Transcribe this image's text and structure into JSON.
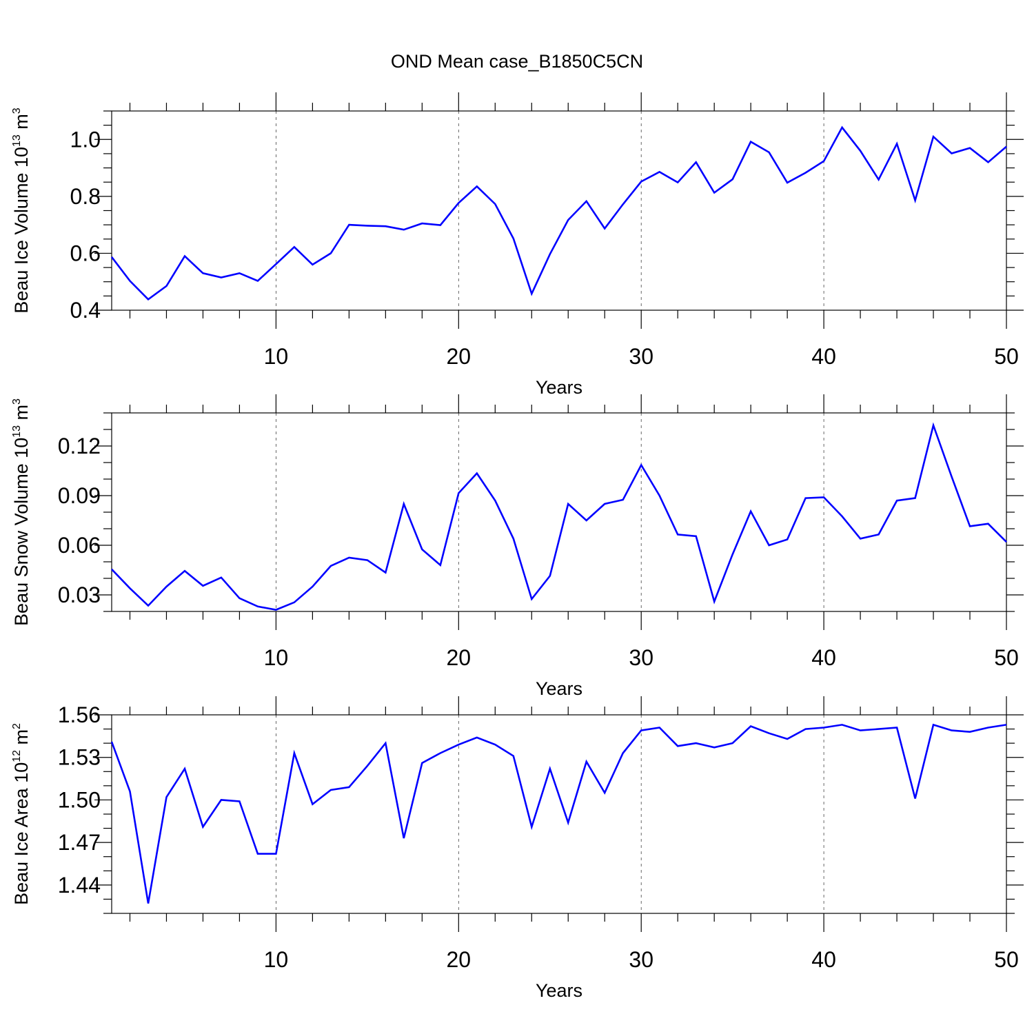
{
  "title": "OND Mean case_B1850C5CN",
  "colors": {
    "series": "#0000ff",
    "axes": "#000000",
    "background": "#ffffff"
  },
  "chart_data": [
    {
      "type": "line",
      "id": "ice-volume",
      "xlabel": "Years",
      "ylabel": {
        "main": "Beau Ice Volume 10",
        "exp": "13",
        "unit": " m",
        "unit_exp": "3"
      },
      "xlim": [
        1,
        50
      ],
      "ylim": [
        0.4,
        1.1
      ],
      "xticks": [
        10,
        20,
        30,
        40,
        50
      ],
      "xtick_labels": [
        "10",
        "20",
        "30",
        "40",
        "50"
      ],
      "yticks": [
        0.4,
        0.6,
        0.8,
        1.0
      ],
      "ytick_labels": [
        "0.4",
        "0.6",
        "0.8",
        "1.0"
      ],
      "y_minor_step": 0.05,
      "grid": "x-dashed",
      "series": [
        {
          "name": "Beau Ice Volume",
          "x": [
            1,
            2,
            3,
            4,
            5,
            6,
            7,
            8,
            9,
            10,
            11,
            12,
            13,
            14,
            15,
            16,
            17,
            18,
            19,
            20,
            21,
            22,
            23,
            24,
            25,
            26,
            27,
            28,
            29,
            30,
            31,
            32,
            33,
            34,
            35,
            36,
            37,
            38,
            39,
            40,
            41,
            42,
            43,
            44,
            45,
            46,
            47,
            48,
            49,
            50
          ],
          "values": [
            0.587,
            0.503,
            0.438,
            0.485,
            0.59,
            0.53,
            0.515,
            0.53,
            0.503,
            0.562,
            0.622,
            0.56,
            0.6,
            0.7,
            0.697,
            0.695,
            0.683,
            0.705,
            0.699,
            0.777,
            0.835,
            0.773,
            0.652,
            0.458,
            0.597,
            0.717,
            0.783,
            0.687,
            0.772,
            0.852,
            0.886,
            0.849,
            0.92,
            0.813,
            0.86,
            0.992,
            0.955,
            0.848,
            0.883,
            0.924,
            1.042,
            0.96,
            0.859,
            0.985,
            0.786,
            1.01,
            0.951,
            0.97,
            0.92,
            0.975
          ]
        }
      ]
    },
    {
      "type": "line",
      "id": "snow-volume",
      "xlabel": "Years",
      "ylabel": {
        "main": "Beau Snow Volume 10",
        "exp": "13",
        "unit": " m",
        "unit_exp": "3"
      },
      "xlim": [
        1,
        50
      ],
      "ylim": [
        0.02,
        0.14
      ],
      "xticks": [
        10,
        20,
        30,
        40,
        50
      ],
      "xtick_labels": [
        "10",
        "20",
        "30",
        "40",
        "50"
      ],
      "yticks": [
        0.03,
        0.06,
        0.09,
        0.12
      ],
      "ytick_labels": [
        "0.03",
        "0.06",
        "0.09",
        "0.12"
      ],
      "y_minor_step": 0.01,
      "grid": "x-dashed",
      "series": [
        {
          "name": "Beau Snow Volume",
          "x": [
            1,
            2,
            3,
            4,
            5,
            6,
            7,
            8,
            9,
            10,
            11,
            12,
            13,
            14,
            15,
            16,
            17,
            18,
            19,
            20,
            21,
            22,
            23,
            24,
            25,
            26,
            27,
            28,
            29,
            30,
            31,
            32,
            33,
            34,
            35,
            36,
            37,
            38,
            39,
            40,
            41,
            42,
            43,
            44,
            45,
            46,
            47,
            48,
            49,
            50
          ],
          "values": [
            0.0455,
            0.034,
            0.0235,
            0.035,
            0.0445,
            0.0355,
            0.0405,
            0.028,
            0.023,
            0.021,
            0.0255,
            0.035,
            0.0475,
            0.0525,
            0.051,
            0.0435,
            0.085,
            0.0575,
            0.048,
            0.0915,
            0.1035,
            0.087,
            0.064,
            0.0275,
            0.0415,
            0.085,
            0.075,
            0.085,
            0.0875,
            0.1085,
            0.09,
            0.0665,
            0.0655,
            0.026,
            0.0545,
            0.0805,
            0.06,
            0.0635,
            0.0885,
            0.089,
            0.0775,
            0.064,
            0.0665,
            0.087,
            0.0885,
            0.1325,
            0.1015,
            0.0715,
            0.073,
            0.062
          ]
        }
      ]
    },
    {
      "type": "line",
      "id": "ice-area",
      "xlabel": "Years",
      "ylabel": {
        "main": "Beau Ice Area 10",
        "exp": "12",
        "unit": " m",
        "unit_exp": "2"
      },
      "xlim": [
        1,
        50
      ],
      "ylim": [
        1.42,
        1.56
      ],
      "xticks": [
        10,
        20,
        30,
        40,
        50
      ],
      "xtick_labels": [
        "10",
        "20",
        "30",
        "40",
        "50"
      ],
      "yticks": [
        1.44,
        1.47,
        1.5,
        1.53,
        1.56
      ],
      "ytick_labels": [
        "1.44",
        "1.47",
        "1.50",
        "1.53",
        "1.56"
      ],
      "y_minor_step": 0.01,
      "grid": "x-dashed",
      "series": [
        {
          "name": "Beau Ice Area",
          "x": [
            1,
            2,
            3,
            4,
            5,
            6,
            7,
            8,
            9,
            10,
            11,
            12,
            13,
            14,
            15,
            16,
            17,
            18,
            19,
            20,
            21,
            22,
            23,
            24,
            25,
            26,
            27,
            28,
            29,
            30,
            31,
            32,
            33,
            34,
            35,
            36,
            37,
            38,
            39,
            40,
            41,
            42,
            43,
            44,
            45,
            46,
            47,
            48,
            49,
            50
          ],
          "values": [
            1.541,
            1.506,
            1.427,
            1.502,
            1.522,
            1.481,
            1.5,
            1.499,
            1.462,
            1.462,
            1.533,
            1.497,
            1.507,
            1.509,
            1.524,
            1.54,
            1.473,
            1.526,
            1.533,
            1.539,
            1.544,
            1.539,
            1.531,
            1.481,
            1.522,
            1.484,
            1.527,
            1.505,
            1.533,
            1.549,
            1.551,
            1.538,
            1.54,
            1.537,
            1.54,
            1.552,
            1.547,
            1.543,
            1.55,
            1.551,
            1.553,
            1.549,
            1.55,
            1.551,
            1.501,
            1.553,
            1.549,
            1.548,
            1.551,
            1.553
          ]
        }
      ]
    }
  ]
}
